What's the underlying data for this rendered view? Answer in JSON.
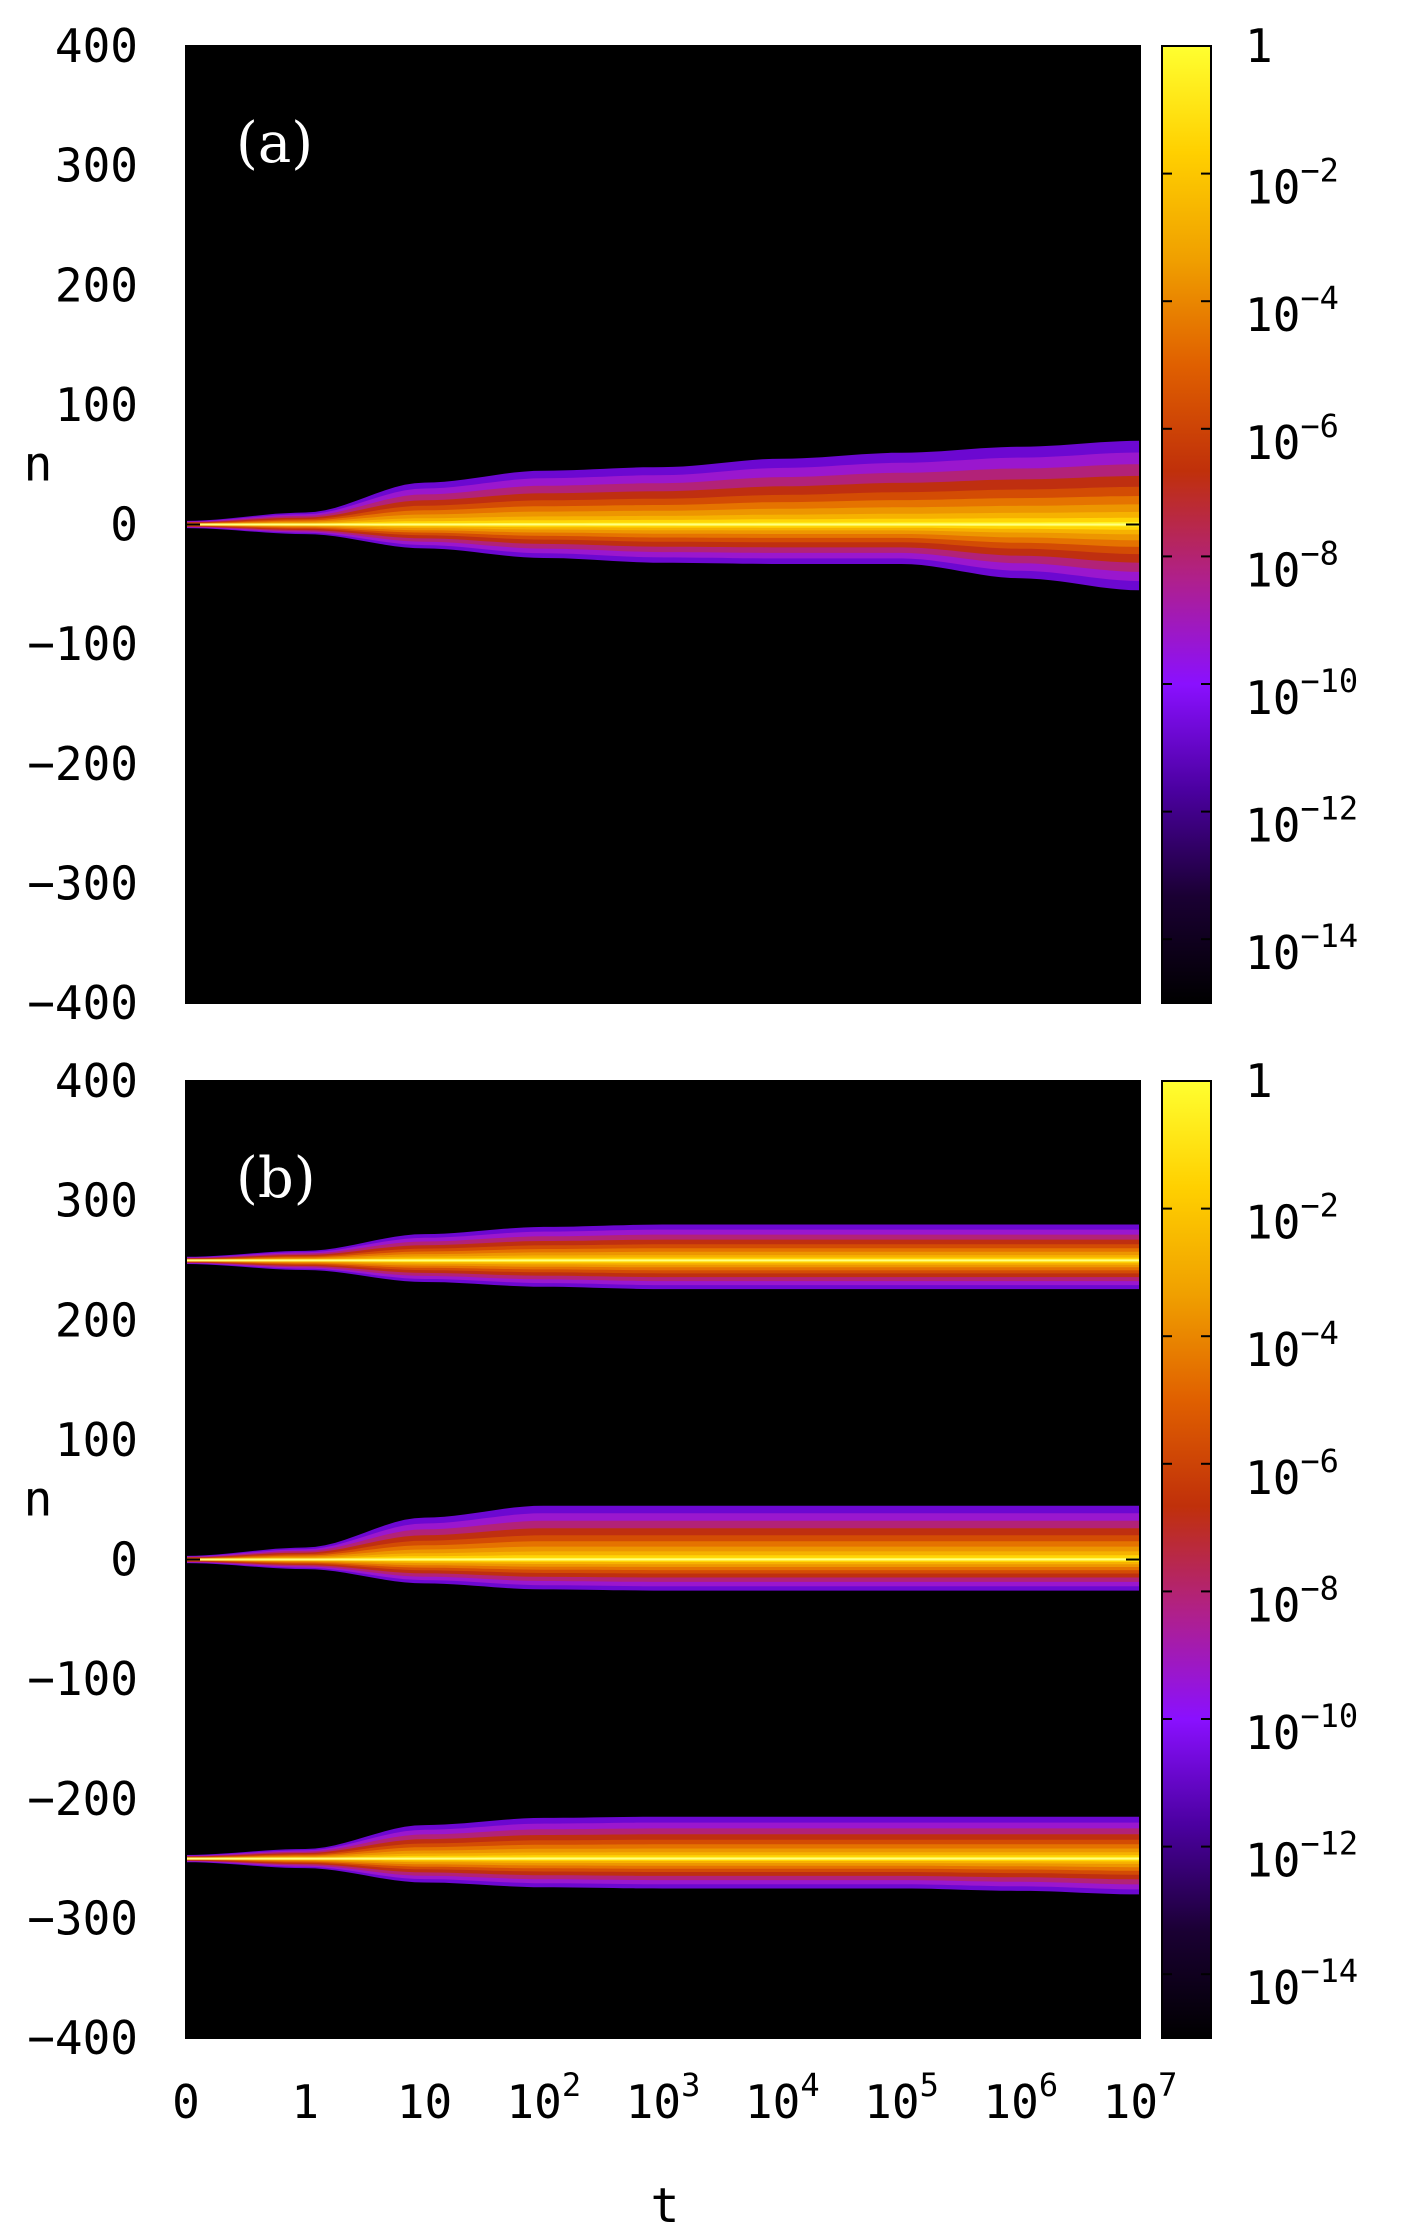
{
  "chart_data": [
    {
      "type": "heatmap",
      "panel_label": "(a)",
      "xlabel": "t",
      "ylabel": "n",
      "x_scale": "log (0 at origin)",
      "x_ticks": [
        "0",
        "1",
        "10",
        "10^2",
        "10^3",
        "10^4",
        "10^5",
        "10^6",
        "10^7"
      ],
      "ylim": [
        -400,
        400
      ],
      "y_ticks": [
        "400",
        "300",
        "200",
        "100",
        "0",
        "−100",
        "−200",
        "−300",
        "−400"
      ],
      "colorbar": {
        "scale": "log",
        "range": [
          1e-15,
          1
        ],
        "labels": [
          {
            "base": "1",
            "exp": ""
          },
          {
            "base": "10",
            "exp": "−2"
          },
          {
            "base": "10",
            "exp": "−4"
          },
          {
            "base": "10",
            "exp": "−6"
          },
          {
            "base": "10",
            "exp": "−8"
          },
          {
            "base": "10",
            "exp": "−10"
          },
          {
            "base": "10",
            "exp": "−12"
          },
          {
            "base": "10",
            "exp": "−14"
          }
        ]
      },
      "wavepackets": [
        {
          "center_n": 0,
          "extent": [
            {
              "t": 0,
              "upper": 3,
              "lower": -3
            },
            {
              "t": 1,
              "upper": 10,
              "lower": -8
            },
            {
              "t": 10,
              "upper": 35,
              "lower": -20
            },
            {
              "t": 100,
              "upper": 45,
              "lower": -28
            },
            {
              "t": 1000,
              "upper": 48,
              "lower": -32
            },
            {
              "t": 10000,
              "upper": 55,
              "lower": -33
            },
            {
              "t": 100000,
              "upper": 60,
              "lower": -33
            },
            {
              "t": 1000000,
              "upper": 65,
              "lower": -45
            },
            {
              "t": 10000000,
              "upper": 70,
              "lower": -55
            }
          ]
        }
      ]
    },
    {
      "type": "heatmap",
      "panel_label": "(b)",
      "xlabel": "t",
      "ylabel": "n",
      "x_scale": "log (0 at origin)",
      "x_ticks": [
        "0",
        "1",
        "10",
        "10^2",
        "10^3",
        "10^4",
        "10^5",
        "10^6",
        "10^7"
      ],
      "ylim": [
        -400,
        400
      ],
      "y_ticks": [
        "400",
        "300",
        "200",
        "100",
        "0",
        "−100",
        "−200",
        "−300",
        "−400"
      ],
      "colorbar": {
        "scale": "log",
        "range": [
          1e-15,
          1
        ],
        "labels": [
          {
            "base": "1",
            "exp": ""
          },
          {
            "base": "10",
            "exp": "−2"
          },
          {
            "base": "10",
            "exp": "−4"
          },
          {
            "base": "10",
            "exp": "−6"
          },
          {
            "base": "10",
            "exp": "−8"
          },
          {
            "base": "10",
            "exp": "−10"
          },
          {
            "base": "10",
            "exp": "−12"
          },
          {
            "base": "10",
            "exp": "−14"
          }
        ]
      },
      "wavepackets": [
        {
          "center_n": 250,
          "extent": [
            {
              "t": 0,
              "upper": 253,
              "lower": 247
            },
            {
              "t": 1,
              "upper": 258,
              "lower": 242
            },
            {
              "t": 10,
              "upper": 272,
              "lower": 232
            },
            {
              "t": 100,
              "upper": 278,
              "lower": 228
            },
            {
              "t": 1000,
              "upper": 280,
              "lower": 226
            },
            {
              "t": 10000,
              "upper": 280,
              "lower": 226
            },
            {
              "t": 100000,
              "upper": 280,
              "lower": 226
            },
            {
              "t": 1000000,
              "upper": 280,
              "lower": 226
            },
            {
              "t": 10000000,
              "upper": 280,
              "lower": 226
            }
          ]
        },
        {
          "center_n": 0,
          "extent": [
            {
              "t": 0,
              "upper": 3,
              "lower": -3
            },
            {
              "t": 1,
              "upper": 10,
              "lower": -8
            },
            {
              "t": 10,
              "upper": 35,
              "lower": -20
            },
            {
              "t": 100,
              "upper": 45,
              "lower": -25
            },
            {
              "t": 1000,
              "upper": 45,
              "lower": -26
            },
            {
              "t": 10000,
              "upper": 45,
              "lower": -26
            },
            {
              "t": 100000,
              "upper": 45,
              "lower": -26
            },
            {
              "t": 1000000,
              "upper": 45,
              "lower": -26
            },
            {
              "t": 10000000,
              "upper": 45,
              "lower": -26
            }
          ]
        },
        {
          "center_n": -250,
          "extent": [
            {
              "t": 0,
              "upper": -247,
              "lower": -253
            },
            {
              "t": 1,
              "upper": -242,
              "lower": -258
            },
            {
              "t": 10,
              "upper": -222,
              "lower": -270
            },
            {
              "t": 100,
              "upper": -216,
              "lower": -274
            },
            {
              "t": 1000,
              "upper": -215,
              "lower": -275
            },
            {
              "t": 10000,
              "upper": -215,
              "lower": -275
            },
            {
              "t": 100000,
              "upper": -215,
              "lower": -275
            },
            {
              "t": 1000000,
              "upper": -215,
              "lower": -277
            },
            {
              "t": 10000000,
              "upper": -215,
              "lower": -280
            }
          ]
        }
      ]
    }
  ],
  "colors": {
    "plot_background": "#000000",
    "colormap": [
      "#000000",
      "#1a0033",
      "#4b00a0",
      "#8a10ff",
      "#b0208a",
      "#c0300a",
      "#e06000",
      "#f0a000",
      "#ffd000",
      "#ffff30"
    ]
  }
}
